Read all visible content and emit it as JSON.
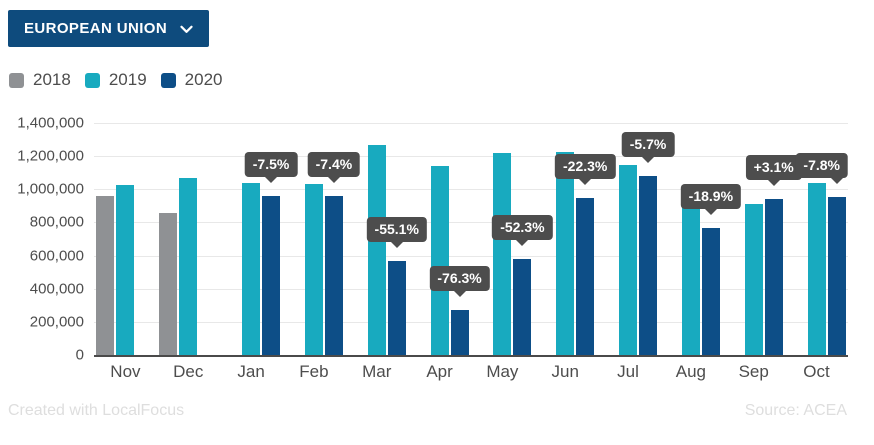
{
  "controls": {
    "region_selector": {
      "label": "EUROPEAN UNION"
    }
  },
  "legend": {
    "items": [
      {
        "label": "2018",
        "color": "#8f9194"
      },
      {
        "label": "2019",
        "color": "#18aabf"
      },
      {
        "label": "2020",
        "color": "#0d4e87"
      }
    ]
  },
  "chart_data": {
    "type": "bar",
    "title": "",
    "xlabel": "",
    "ylabel": "",
    "categories": [
      "Nov",
      "Dec",
      "Jan",
      "Feb",
      "Mar",
      "Apr",
      "May",
      "Jun",
      "Jul",
      "Aug",
      "Sep",
      "Oct"
    ],
    "series": [
      {
        "name": "2018",
        "color": "#8f9194",
        "values": [
          961000,
          858000,
          null,
          null,
          null,
          null,
          null,
          null,
          null,
          null,
          null,
          null
        ]
      },
      {
        "name": "2019",
        "color": "#18aabf",
        "values": [
          1023000,
          1066000,
          1035000,
          1034000,
          1266000,
          1142000,
          1219000,
          1222000,
          1145000,
          947000,
          911000,
          1037000
        ]
      },
      {
        "name": "2020",
        "color": "#0d4e87",
        "values": [
          null,
          null,
          957000,
          958000,
          568000,
          271000,
          581000,
          950000,
          1080000,
          768000,
          939000,
          956000
        ]
      }
    ],
    "change_labels": [
      "",
      "",
      "-7.5%",
      "-7.4%",
      "-55.1%",
      "-76.3%",
      "-52.3%",
      "-22.3%",
      "-5.7%",
      "-18.9%",
      "+3.1%",
      "-7.8%"
    ],
    "ylim": [
      0,
      1400000
    ],
    "ytick_step": 200000,
    "ytick_labels": [
      "0",
      "200,000",
      "400,000",
      "600,000",
      "800,000",
      "1,000,000",
      "1,200,000",
      "1,400,000"
    ],
    "grid": true,
    "legend_position": "top-left",
    "tooltip_bg": "#4d4d4d"
  },
  "footer": {
    "credit": "Created with LocalFocus",
    "source": "Source: ACEA"
  },
  "colors": {
    "button_bg": "#0e4b7d",
    "button_text": "#ffffff",
    "axis_text": "#4d4d4d",
    "gridline": "#e8e8e8",
    "baseline": "#4a4a4a",
    "tooltip_bg": "#4d4d4d",
    "tooltip_text": "#ffffff",
    "footer_text": "#dedede"
  }
}
